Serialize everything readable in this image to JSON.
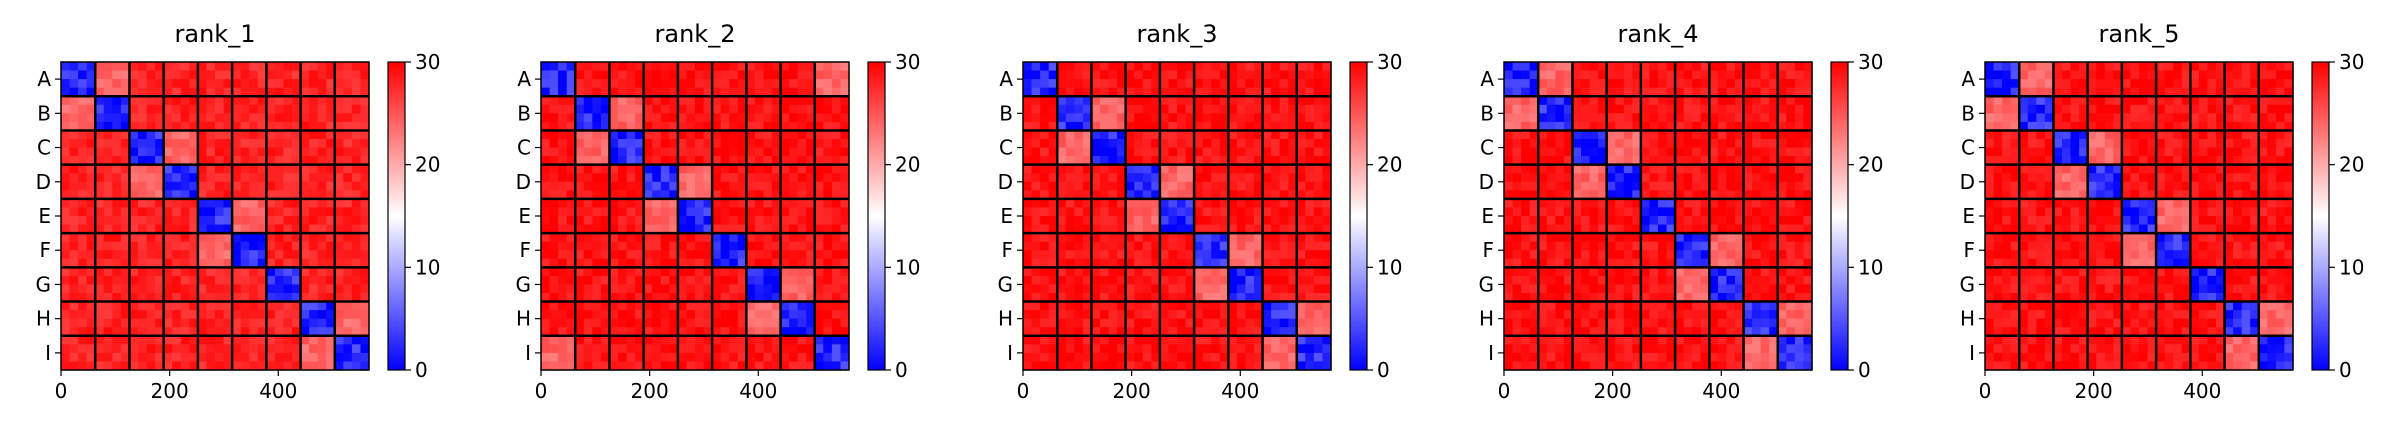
{
  "chart_data": [
    {
      "type": "heatmap",
      "title": "rank_1",
      "row_labels": [
        "A",
        "B",
        "C",
        "D",
        "E",
        "F",
        "G",
        "H",
        "I"
      ],
      "x_ticks": [
        0,
        200,
        400
      ],
      "x_range": [
        0,
        567
      ],
      "block_size": 63,
      "block_values": [
        [
          2,
          24,
          28,
          28,
          28,
          28,
          28,
          28,
          28
        ],
        [
          24,
          2,
          28,
          28,
          28,
          28,
          28,
          28,
          28
        ],
        [
          28,
          28,
          2,
          24,
          28,
          28,
          28,
          28,
          28
        ],
        [
          28,
          28,
          24,
          2,
          28,
          28,
          28,
          28,
          28
        ],
        [
          28,
          28,
          28,
          28,
          2,
          24,
          28,
          28,
          28
        ],
        [
          28,
          28,
          28,
          28,
          24,
          2,
          28,
          28,
          28
        ],
        [
          28,
          28,
          28,
          28,
          28,
          28,
          2,
          28,
          28
        ],
        [
          28,
          28,
          28,
          28,
          28,
          28,
          28,
          2,
          24
        ],
        [
          28,
          28,
          28,
          28,
          28,
          28,
          28,
          24,
          2
        ]
      ],
      "colorbar": {
        "min": 0,
        "max": 30,
        "ticks": [
          0,
          10,
          20,
          30
        ],
        "colors": [
          "#0000ff",
          "#ffffff",
          "#ff0000"
        ]
      }
    },
    {
      "type": "heatmap",
      "title": "rank_2",
      "row_labels": [
        "A",
        "B",
        "C",
        "D",
        "E",
        "F",
        "G",
        "H",
        "I"
      ],
      "x_ticks": [
        0,
        200,
        400
      ],
      "x_range": [
        0,
        567
      ],
      "block_size": 63,
      "block_values": [
        [
          2,
          29,
          29,
          29,
          29,
          29,
          29,
          29,
          24
        ],
        [
          29,
          2,
          24,
          29,
          29,
          29,
          29,
          29,
          29
        ],
        [
          29,
          24,
          2,
          29,
          29,
          29,
          29,
          29,
          29
        ],
        [
          29,
          29,
          29,
          2,
          24,
          29,
          29,
          29,
          29
        ],
        [
          29,
          29,
          29,
          24,
          2,
          29,
          29,
          29,
          29
        ],
        [
          29,
          29,
          29,
          29,
          29,
          2,
          29,
          29,
          29
        ],
        [
          29,
          29,
          29,
          29,
          29,
          29,
          2,
          24,
          29
        ],
        [
          29,
          29,
          29,
          29,
          29,
          29,
          24,
          2,
          29
        ],
        [
          24,
          29,
          29,
          29,
          29,
          29,
          29,
          29,
          2
        ]
      ],
      "colorbar": {
        "min": 0,
        "max": 30,
        "ticks": [
          0,
          10,
          20,
          30
        ],
        "colors": [
          "#0000ff",
          "#ffffff",
          "#ff0000"
        ]
      }
    },
    {
      "type": "heatmap",
      "title": "rank_3",
      "row_labels": [
        "A",
        "B",
        "C",
        "D",
        "E",
        "F",
        "G",
        "H",
        "I"
      ],
      "x_ticks": [
        0,
        200,
        400
      ],
      "x_range": [
        0,
        567
      ],
      "block_size": 63,
      "block_values": [
        [
          2,
          29,
          29,
          29,
          29,
          29,
          29,
          29,
          29
        ],
        [
          29,
          2,
          24,
          29,
          29,
          29,
          29,
          29,
          29
        ],
        [
          29,
          24,
          2,
          29,
          29,
          29,
          29,
          29,
          29
        ],
        [
          29,
          29,
          29,
          2,
          24,
          29,
          29,
          29,
          29
        ],
        [
          29,
          29,
          29,
          24,
          2,
          29,
          29,
          29,
          29
        ],
        [
          29,
          29,
          29,
          29,
          29,
          2,
          24,
          29,
          29
        ],
        [
          29,
          29,
          29,
          29,
          29,
          24,
          2,
          29,
          29
        ],
        [
          29,
          29,
          29,
          29,
          29,
          29,
          29,
          2,
          24
        ],
        [
          29,
          29,
          29,
          29,
          29,
          29,
          29,
          24,
          2
        ]
      ],
      "colorbar": {
        "min": 0,
        "max": 30,
        "ticks": [
          0,
          10,
          20,
          30
        ],
        "colors": [
          "#0000ff",
          "#ffffff",
          "#ff0000"
        ]
      }
    },
    {
      "type": "heatmap",
      "title": "rank_4",
      "row_labels": [
        "A",
        "B",
        "C",
        "D",
        "E",
        "F",
        "G",
        "H",
        "I"
      ],
      "x_ticks": [
        0,
        200,
        400
      ],
      "x_range": [
        0,
        567
      ],
      "block_size": 63,
      "block_values": [
        [
          2,
          24,
          29,
          29,
          29,
          29,
          29,
          29,
          29
        ],
        [
          24,
          2,
          29,
          29,
          29,
          29,
          29,
          29,
          29
        ],
        [
          29,
          29,
          2,
          24,
          29,
          29,
          29,
          29,
          29
        ],
        [
          29,
          29,
          24,
          2,
          29,
          29,
          29,
          29,
          29
        ],
        [
          29,
          29,
          29,
          29,
          2,
          29,
          29,
          29,
          29
        ],
        [
          29,
          29,
          29,
          29,
          29,
          2,
          24,
          29,
          29
        ],
        [
          29,
          29,
          29,
          29,
          29,
          24,
          2,
          29,
          29
        ],
        [
          29,
          29,
          29,
          29,
          29,
          29,
          29,
          2,
          24
        ],
        [
          29,
          29,
          29,
          29,
          29,
          29,
          29,
          24,
          2
        ]
      ],
      "colorbar": {
        "min": 0,
        "max": 30,
        "ticks": [
          0,
          10,
          20,
          30
        ],
        "colors": [
          "#0000ff",
          "#ffffff",
          "#ff0000"
        ]
      }
    },
    {
      "type": "heatmap",
      "title": "rank_5",
      "row_labels": [
        "A",
        "B",
        "C",
        "D",
        "E",
        "F",
        "G",
        "H",
        "I"
      ],
      "x_ticks": [
        0,
        200,
        400
      ],
      "x_range": [
        0,
        567
      ],
      "block_size": 63,
      "block_values": [
        [
          2,
          24,
          29,
          29,
          29,
          29,
          29,
          29,
          29
        ],
        [
          24,
          2,
          29,
          29,
          29,
          29,
          29,
          29,
          29
        ],
        [
          29,
          29,
          2,
          24,
          29,
          29,
          29,
          29,
          29
        ],
        [
          29,
          29,
          24,
          2,
          29,
          29,
          29,
          29,
          29
        ],
        [
          29,
          29,
          29,
          29,
          2,
          24,
          29,
          29,
          29
        ],
        [
          29,
          29,
          29,
          29,
          24,
          2,
          29,
          29,
          29
        ],
        [
          29,
          29,
          29,
          29,
          29,
          29,
          2,
          29,
          29
        ],
        [
          29,
          29,
          29,
          29,
          29,
          29,
          29,
          2,
          24
        ],
        [
          29,
          29,
          29,
          29,
          29,
          29,
          29,
          24,
          2
        ]
      ],
      "colorbar": {
        "min": 0,
        "max": 30,
        "ticks": [
          0,
          10,
          20,
          30
        ],
        "colors": [
          "#0000ff",
          "#ffffff",
          "#ff0000"
        ]
      }
    }
  ]
}
